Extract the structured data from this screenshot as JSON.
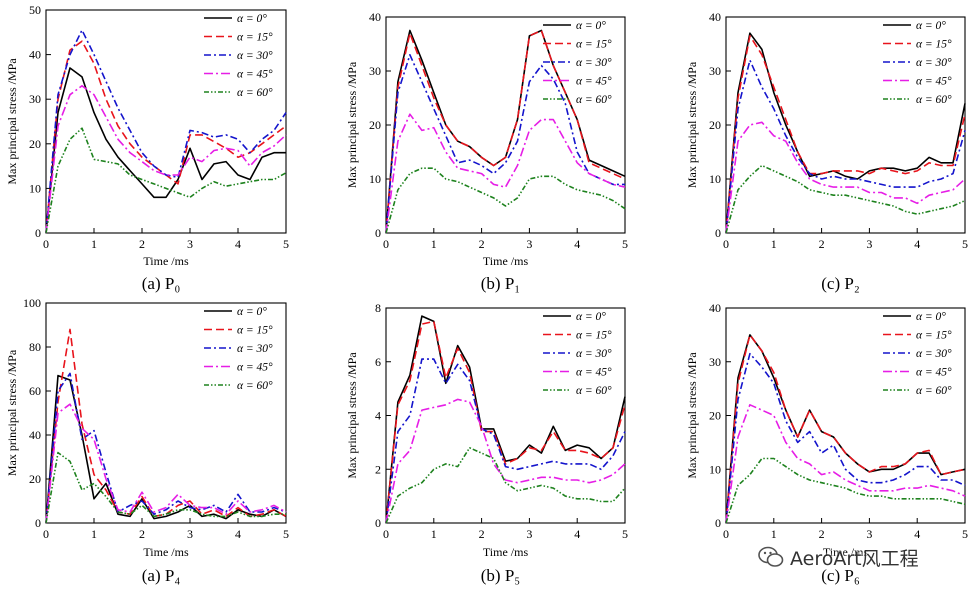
{
  "figure": {
    "watermark": "AeroArt风工程"
  },
  "legend_labels": [
    "α = 0°",
    "α = 15°",
    "α = 30°",
    "α = 45°",
    "α = 60°"
  ],
  "series_style": {
    "colors": [
      "#000000",
      "#e8141c",
      "#1414cc",
      "#e61ee6",
      "#1e821e"
    ],
    "dashes": [
      "",
      "8,4",
      "7,3,2,3",
      "9,3,2,3",
      "5,2,1.5,2,1.5,2"
    ]
  },
  "chart_data": [
    {
      "type": "line",
      "caption": "(a) P₀",
      "xlabel": "Time /ms",
      "ylabel": "Max principal stress /MPa",
      "xlim": [
        0,
        5
      ],
      "ylim": [
        0,
        50
      ],
      "xticks": [
        0,
        1,
        2,
        3,
        4,
        5
      ],
      "yticks": [
        0,
        10,
        20,
        30,
        40,
        50
      ],
      "legend_position": "top-right",
      "x": [
        0,
        0.25,
        0.5,
        0.75,
        1,
        1.25,
        1.5,
        1.75,
        2,
        2.25,
        2.5,
        2.75,
        3,
        3.25,
        3.5,
        3.75,
        4,
        4.25,
        4.5,
        4.75,
        5
      ],
      "series": [
        {
          "name": "α = 0°",
          "values": [
            0,
            27,
            37,
            35,
            27,
            21,
            17,
            14,
            11,
            8,
            8,
            12,
            19,
            12,
            15.5,
            16,
            13,
            12,
            17,
            18,
            18
          ]
        },
        {
          "name": "α = 15°",
          "values": [
            0,
            30,
            41,
            43,
            38,
            30,
            24,
            20,
            17,
            15,
            13,
            11,
            22,
            22,
            20.5,
            19,
            17,
            18,
            20,
            22,
            24
          ]
        },
        {
          "name": "α = 30°",
          "values": [
            0,
            31,
            40,
            45.5,
            40,
            34,
            28,
            23,
            18,
            15,
            13,
            12.5,
            23,
            22.5,
            21.5,
            22,
            21,
            18,
            21,
            23,
            27
          ]
        },
        {
          "name": "α = 45°",
          "values": [
            0,
            24,
            31,
            33,
            31,
            26,
            21,
            18,
            16,
            14,
            13,
            13,
            17,
            16,
            18.5,
            19,
            18.5,
            15,
            18,
            19.5,
            22
          ]
        },
        {
          "name": "α = 60°",
          "values": [
            0,
            15,
            21,
            23.5,
            16.5,
            16,
            15.5,
            13,
            12,
            11,
            10,
            9,
            8,
            10,
            11.5,
            10.5,
            11,
            11.5,
            12,
            12,
            13.5
          ]
        }
      ]
    },
    {
      "type": "line",
      "caption": "(b) P₁",
      "xlabel": "Time /ms",
      "ylabel": "Max principal stress /MPa",
      "xlim": [
        0,
        5
      ],
      "ylim": [
        0,
        40
      ],
      "xticks": [
        0,
        1,
        2,
        3,
        4,
        5
      ],
      "yticks": [
        0,
        10,
        20,
        30,
        40
      ],
      "legend_position": "top-right",
      "x": [
        0,
        0.25,
        0.5,
        0.75,
        1,
        1.25,
        1.5,
        1.75,
        2,
        2.25,
        2.5,
        2.75,
        3,
        3.25,
        3.5,
        3.75,
        4,
        4.25,
        4.5,
        4.75,
        5
      ],
      "series": [
        {
          "name": "α = 0°",
          "values": [
            0,
            28,
            37.5,
            32,
            26,
            20,
            17,
            16,
            14,
            12.5,
            14,
            21,
            36.5,
            37.5,
            31,
            26,
            21,
            13.5,
            12.5,
            11.5,
            10.5
          ]
        },
        {
          "name": "α = 15°",
          "values": [
            0,
            27,
            37,
            31,
            25,
            20,
            17,
            16,
            14,
            12.5,
            14,
            21,
            36.5,
            37.5,
            31,
            26,
            21,
            13,
            12,
            11,
            10
          ]
        },
        {
          "name": "α = 30°",
          "values": [
            0,
            26,
            33,
            28,
            23,
            18,
            13,
            13.5,
            12.5,
            11,
            13,
            17,
            28,
            31,
            28.5,
            24,
            15,
            11,
            10,
            9,
            9
          ]
        },
        {
          "name": "α = 45°",
          "values": [
            0,
            17,
            22,
            19,
            19.5,
            15,
            12,
            11.5,
            11,
            9,
            8.5,
            12.5,
            19,
            21,
            21,
            17,
            13,
            11,
            10,
            9,
            8.5
          ]
        },
        {
          "name": "α = 60°",
          "values": [
            0,
            8,
            11,
            12,
            12,
            10,
            9.5,
            8.5,
            7.5,
            6.5,
            5,
            6.5,
            10,
            10.5,
            10.5,
            9,
            8,
            7.5,
            7,
            6,
            4.5
          ]
        }
      ]
    },
    {
      "type": "line",
      "caption": "(c) P₂",
      "xlabel": "",
      "ylabel": "Max principal stress /MPa",
      "xlim": [
        0,
        5
      ],
      "ylim": [
        0,
        40
      ],
      "xticks": [
        0,
        1,
        2,
        3,
        4,
        5
      ],
      "yticks": [
        0,
        10,
        20,
        30,
        40
      ],
      "legend_position": "top-right",
      "x": [
        0,
        0.25,
        0.5,
        0.75,
        1,
        1.25,
        1.5,
        1.75,
        2,
        2.25,
        2.5,
        2.75,
        3,
        3.25,
        3.5,
        3.75,
        4,
        4.25,
        4.5,
        4.75,
        5
      ],
      "series": [
        {
          "name": "α = 0°",
          "values": [
            0,
            26,
            37,
            34,
            26,
            20,
            15,
            10.5,
            11,
            11.5,
            10.5,
            10,
            11.5,
            12,
            12,
            11.5,
            12,
            14,
            13,
            13,
            24
          ]
        },
        {
          "name": "α = 15°",
          "values": [
            0,
            25,
            36.5,
            33,
            27,
            21,
            15,
            11,
            11,
            11.5,
            11.5,
            11.5,
            11,
            12,
            11.5,
            11,
            11.5,
            13,
            12.5,
            12.5,
            22
          ]
        },
        {
          "name": "α = 30°",
          "values": [
            0,
            23,
            32,
            27,
            23,
            18,
            14,
            11,
            10,
            10.5,
            10,
            10,
            9.5,
            9,
            8.5,
            8.5,
            8.5,
            9.5,
            10,
            11,
            19
          ]
        },
        {
          "name": "α = 45°",
          "values": [
            0,
            17,
            20,
            20.5,
            18,
            17,
            13,
            10,
            9,
            8.5,
            8.5,
            8.5,
            7.5,
            7.5,
            6.5,
            6.5,
            5.5,
            7,
            7.5,
            8,
            10
          ]
        },
        {
          "name": "α = 60°",
          "values": [
            0,
            8,
            10.5,
            12.5,
            11.5,
            10.5,
            9.5,
            8,
            7.5,
            7,
            7,
            6.5,
            6,
            5.5,
            5,
            4,
            3.5,
            4,
            4.5,
            5,
            6
          ]
        }
      ]
    },
    {
      "type": "line",
      "caption": "(a) P₄",
      "xlabel": "Time /ms",
      "ylabel": "Max principal stress /MPa",
      "xlim": [
        0,
        5
      ],
      "ylim": [
        0,
        100
      ],
      "xticks": [
        0,
        1,
        2,
        3,
        4,
        5
      ],
      "yticks": [
        0,
        20,
        40,
        60,
        80,
        100
      ],
      "legend_position": "top-right",
      "x": [
        0,
        0.25,
        0.5,
        0.75,
        1,
        1.25,
        1.5,
        1.75,
        2,
        2.25,
        2.5,
        2.75,
        3,
        3.25,
        3.5,
        3.75,
        4,
        4.25,
        4.5,
        4.75,
        5
      ],
      "series": [
        {
          "name": "α = 0°",
          "values": [
            0,
            67,
            65,
            40,
            11,
            18,
            4,
            3,
            11,
            2,
            3,
            5,
            8,
            3,
            4,
            2,
            6,
            4,
            3,
            6,
            3
          ]
        },
        {
          "name": "α = 15°",
          "values": [
            0,
            55,
            88,
            45,
            22,
            15,
            5,
            4,
            12,
            3,
            4,
            8,
            10,
            4,
            6,
            3,
            7,
            3,
            4,
            6,
            3
          ]
        },
        {
          "name": "α = 30°",
          "values": [
            0,
            60,
            68,
            38,
            42,
            23,
            5,
            8,
            10,
            4,
            6,
            10,
            7,
            6,
            8,
            5,
            13,
            5,
            5,
            7,
            5
          ]
        },
        {
          "name": "α = 45°",
          "values": [
            0,
            50,
            54,
            43,
            38,
            20,
            6,
            5,
            14,
            5,
            7,
            13,
            8,
            7,
            7,
            4,
            10,
            5,
            6,
            8,
            5
          ]
        },
        {
          "name": "α = 60°",
          "values": [
            0,
            32,
            28,
            15,
            18,
            12,
            5,
            4,
            8,
            3,
            4,
            6,
            6,
            4,
            3,
            3,
            5,
            3,
            3,
            4,
            4
          ]
        }
      ]
    },
    {
      "type": "line",
      "caption": "(b) P₅",
      "xlabel": "Time /ms",
      "ylabel": "Max principal stress /MPa",
      "xlim": [
        0,
        5
      ],
      "ylim": [
        0,
        8
      ],
      "xticks": [
        0,
        1,
        2,
        3,
        4,
        5
      ],
      "yticks": [
        0,
        2,
        4,
        6,
        8
      ],
      "legend_position": "top-right",
      "x": [
        0,
        0.25,
        0.5,
        0.75,
        1,
        1.25,
        1.5,
        1.75,
        2,
        2.25,
        2.5,
        2.75,
        3,
        3.25,
        3.5,
        3.75,
        4,
        4.25,
        4.5,
        4.75,
        5
      ],
      "series": [
        {
          "name": "α = 0°",
          "values": [
            0,
            4.5,
            5.5,
            7.7,
            7.5,
            5.2,
            6.6,
            5.8,
            3.5,
            3.5,
            2.3,
            2.4,
            2.9,
            2.6,
            3.6,
            2.7,
            2.9,
            2.8,
            2.4,
            2.8,
            4.7
          ]
        },
        {
          "name": "α = 15°",
          "values": [
            0,
            4.4,
            5.3,
            7.4,
            7.5,
            5.4,
            6.5,
            5.6,
            3.4,
            3.4,
            2.2,
            2.4,
            2.8,
            2.7,
            3.4,
            2.7,
            2.7,
            2.6,
            2.4,
            2.8,
            4.4
          ]
        },
        {
          "name": "α = 30°",
          "values": [
            0,
            3.4,
            4.0,
            6.1,
            6.1,
            5.2,
            5.9,
            5.3,
            3.5,
            3.3,
            2.1,
            2.0,
            2.1,
            2.2,
            2.3,
            2.2,
            2.2,
            2.2,
            2.0,
            2.5,
            3.4
          ]
        },
        {
          "name": "α = 45°",
          "values": [
            0,
            2.2,
            2.7,
            4.2,
            4.3,
            4.4,
            4.6,
            4.5,
            3.6,
            2.2,
            1.6,
            1.5,
            1.6,
            1.7,
            1.7,
            1.6,
            1.6,
            1.5,
            1.6,
            1.8,
            2.2
          ]
        },
        {
          "name": "α = 60°",
          "values": [
            0,
            1.0,
            1.3,
            1.5,
            2.0,
            2.2,
            2.1,
            2.8,
            2.6,
            2.4,
            1.5,
            1.2,
            1.3,
            1.4,
            1.3,
            1.0,
            0.9,
            0.9,
            0.8,
            0.8,
            1.3
          ]
        }
      ]
    },
    {
      "type": "line",
      "caption": "(c) P₆",
      "xlabel": "Time /ms",
      "ylabel": "Max principal stress /MPa",
      "xlim": [
        0,
        5
      ],
      "ylim": [
        0,
        40
      ],
      "xticks": [
        0,
        1,
        2,
        3,
        4,
        5
      ],
      "yticks": [
        0,
        10,
        20,
        30,
        40
      ],
      "legend_position": "top-right",
      "x": [
        0,
        0.25,
        0.5,
        0.75,
        1,
        1.25,
        1.5,
        1.75,
        2,
        2.25,
        2.5,
        2.75,
        3,
        3.25,
        3.5,
        3.75,
        4,
        4.25,
        4.5,
        4.75,
        5
      ],
      "series": [
        {
          "name": "α = 0°",
          "values": [
            0,
            27,
            35,
            32,
            27,
            21,
            16,
            21,
            17,
            16,
            13,
            11,
            9.5,
            10,
            10,
            11,
            13,
            13,
            9,
            9.5,
            10
          ]
        },
        {
          "name": "α = 15°",
          "values": [
            0,
            26,
            35,
            32,
            28,
            21,
            16,
            21,
            17,
            16,
            13,
            11,
            9.5,
            10.5,
            10.5,
            11,
            13,
            13.5,
            9,
            9.5,
            10
          ]
        },
        {
          "name": "α = 30°",
          "values": [
            0,
            23,
            31.5,
            29,
            26,
            19,
            15,
            17,
            13,
            14.5,
            10,
            8,
            7.5,
            7.5,
            8,
            9,
            10.5,
            10.5,
            8,
            8,
            7
          ]
        },
        {
          "name": "α = 45°",
          "values": [
            0,
            16,
            22,
            21,
            20,
            15,
            12,
            11,
            9,
            9.5,
            8,
            7,
            6,
            6,
            6,
            6.5,
            6.5,
            7,
            6.5,
            6,
            5
          ]
        },
        {
          "name": "α = 60°",
          "values": [
            0,
            7,
            9,
            12,
            12,
            10.5,
            9,
            8,
            7.5,
            7,
            6.5,
            5.5,
            5,
            5,
            4.5,
            4.5,
            4.5,
            4.5,
            4.5,
            4,
            3.5
          ]
        }
      ]
    }
  ]
}
